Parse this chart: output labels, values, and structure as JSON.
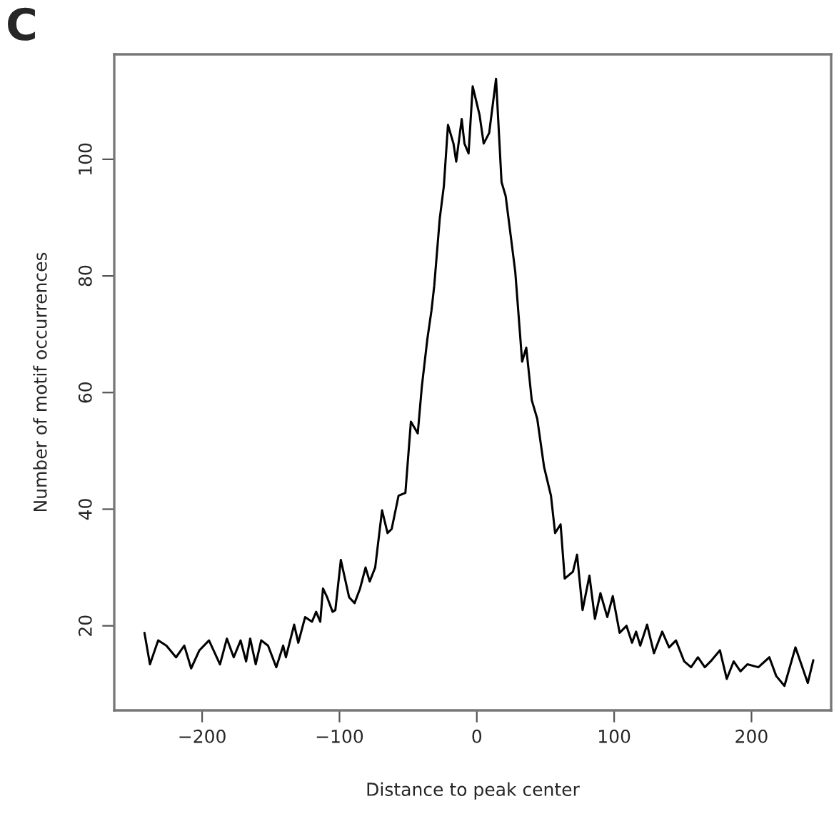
{
  "chart_data": {
    "type": "line",
    "title": "C",
    "xlabel": "Distance to peak center",
    "ylabel": "Number of motif occurrences",
    "xlim": [
      -264,
      258
    ],
    "ylim": [
      5.5,
      118
    ],
    "xticks": [
      {
        "value": -200,
        "label": "−200"
      },
      {
        "value": -100,
        "label": "−100"
      },
      0,
      100,
      200
    ],
    "yticks": [
      20,
      40,
      60,
      80,
      100
    ],
    "grid": false,
    "marker": "none",
    "line_style": "solid",
    "series": [
      {
        "color": "#000000",
        "x": [
          -242,
          -238,
          -232,
          -226,
          -219,
          -213,
          -208,
          -202,
          -195,
          -187,
          -182,
          -177,
          -172,
          -168,
          -165,
          -161,
          -157,
          -152,
          -146,
          -141,
          -139,
          -133,
          -130,
          -125,
          -120,
          -117,
          -114,
          -112,
          -109,
          -105,
          -103,
          -99,
          -93,
          -89,
          -85,
          -81,
          -78,
          -74,
          -69,
          -65,
          -62,
          -57,
          -52,
          -48,
          -43,
          -40,
          -36,
          -33,
          -31,
          -27,
          -24,
          -21,
          -17,
          -15,
          -11,
          -9,
          -6,
          -3,
          2,
          5,
          9,
          14,
          18,
          21,
          25,
          28,
          33,
          36,
          40,
          44,
          49,
          54,
          57,
          61,
          64,
          70,
          73,
          77,
          82,
          86,
          90,
          95,
          99,
          104,
          109,
          113,
          116,
          119,
          124,
          129,
          135,
          140,
          145,
          151,
          156,
          161,
          166,
          171,
          177,
          182,
          187,
          192,
          197,
          205,
          213,
          218,
          224,
          232,
          241,
          245
        ],
        "values": [
          18.8,
          13.4,
          17.5,
          16.6,
          14.6,
          16.6,
          12.7,
          15.8,
          17.5,
          13.4,
          17.8,
          14.6,
          17.5,
          13.9,
          17.8,
          13.4,
          17.5,
          16.6,
          12.9,
          16.6,
          14.6,
          20.2,
          17.1,
          21.5,
          20.7,
          22.4,
          20.7,
          26.4,
          24.9,
          22.4,
          22.7,
          31.3,
          24.9,
          23.9,
          26.4,
          30.0,
          27.6,
          30.0,
          39.8,
          35.9,
          36.6,
          42.3,
          42.8,
          55.0,
          53.0,
          61.1,
          69.2,
          74.1,
          78.3,
          89.8,
          95.4,
          105.9,
          102.7,
          99.6,
          106.9,
          102.7,
          101.0,
          112.5,
          107.6,
          102.7,
          104.5,
          113.8,
          96.1,
          93.7,
          86.3,
          80.7,
          65.3,
          67.7,
          58.7,
          55.5,
          47.2,
          42.3,
          35.9,
          37.4,
          28.1,
          29.3,
          32.2,
          22.7,
          28.6,
          21.2,
          25.6,
          21.5,
          25.1,
          18.8,
          20.0,
          17.1,
          19.0,
          16.6,
          20.2,
          15.3,
          19.0,
          16.3,
          17.5,
          13.9,
          12.9,
          14.6,
          12.9,
          14.1,
          15.8,
          10.9,
          13.9,
          12.2,
          13.4,
          12.9,
          14.6,
          11.4,
          9.7,
          16.3,
          10.2,
          14.1
        ]
      }
    ]
  }
}
